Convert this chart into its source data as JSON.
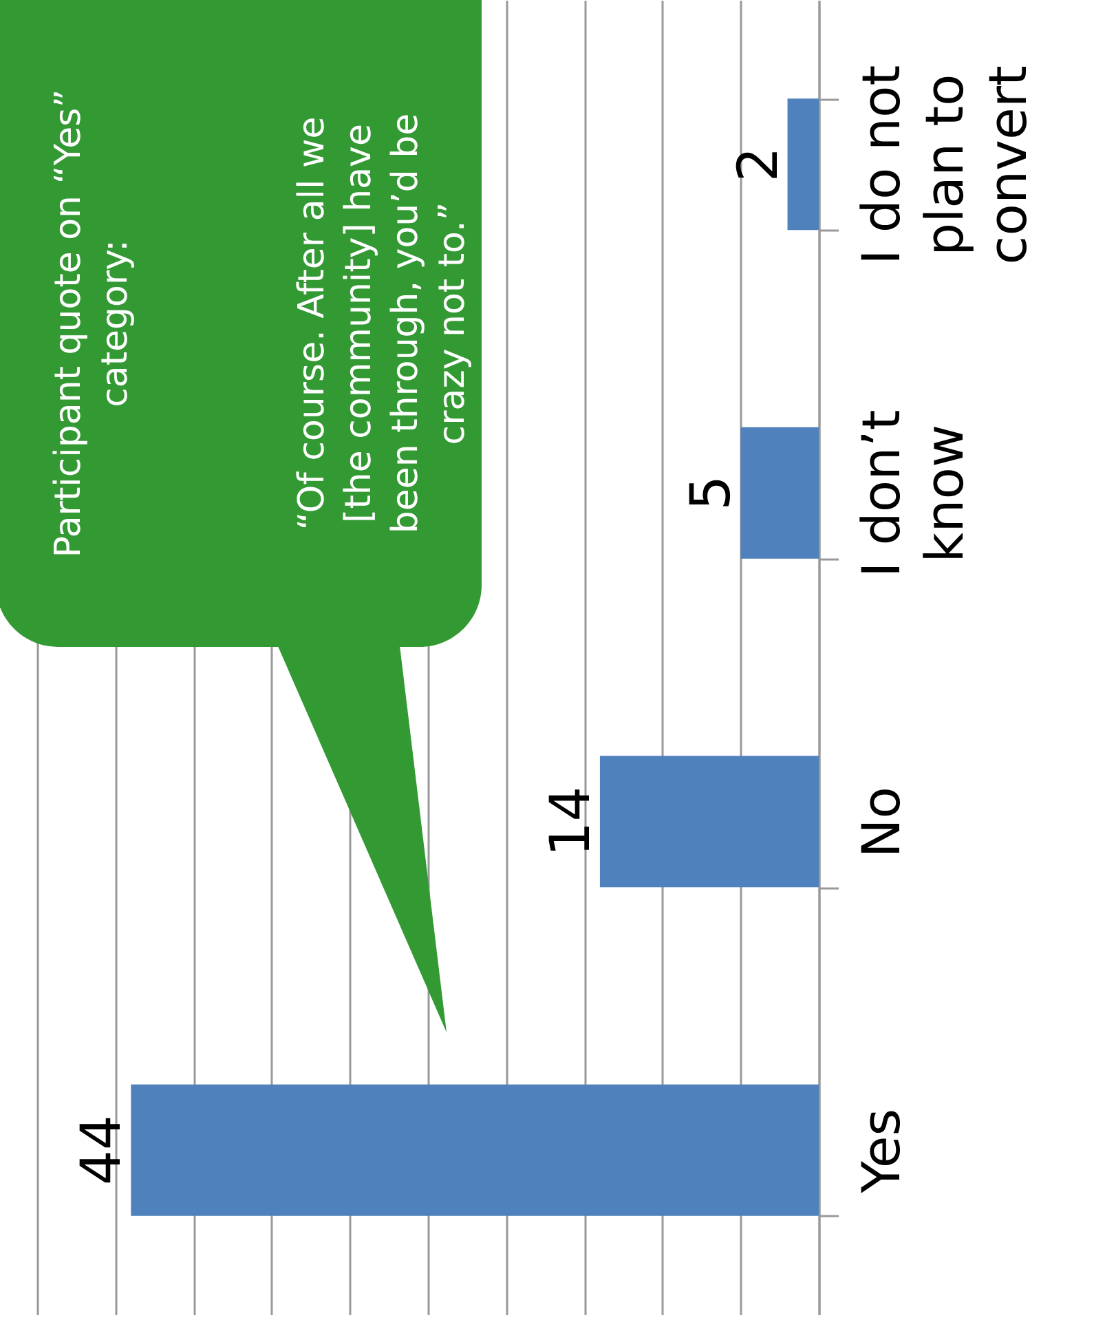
{
  "chart_data": {
    "type": "bar",
    "orientation": "horizontal",
    "categories": [
      "I do not plan to convert",
      "I don’t know",
      "No",
      "Yes"
    ],
    "values": [
      2,
      5,
      14,
      44
    ],
    "color": "#4f81bd",
    "data_labels": true,
    "xlim": [
      50,
      0
    ],
    "xticks": [
      {
        "value": 0,
        "label": null
      },
      {
        "value": 5,
        "label": null
      },
      {
        "value": 10,
        "label": null
      },
      {
        "value": 15,
        "label": null
      },
      {
        "value": 20,
        "label": null
      },
      {
        "value": 25,
        "label": null
      },
      {
        "value": 30,
        "label": null
      },
      {
        "value": 35,
        "label": null
      },
      {
        "value": 40,
        "label": null
      },
      {
        "value": 45,
        "label": null
      },
      {
        "value": 50,
        "label": null
      }
    ],
    "grid": "x",
    "tick_labels": "y",
    "annotations": [
      "Participant quote on “Yes” category:",
      "“Of course. After all we [the community] have been through, you’d be crazy not to.”"
    ]
  }
}
